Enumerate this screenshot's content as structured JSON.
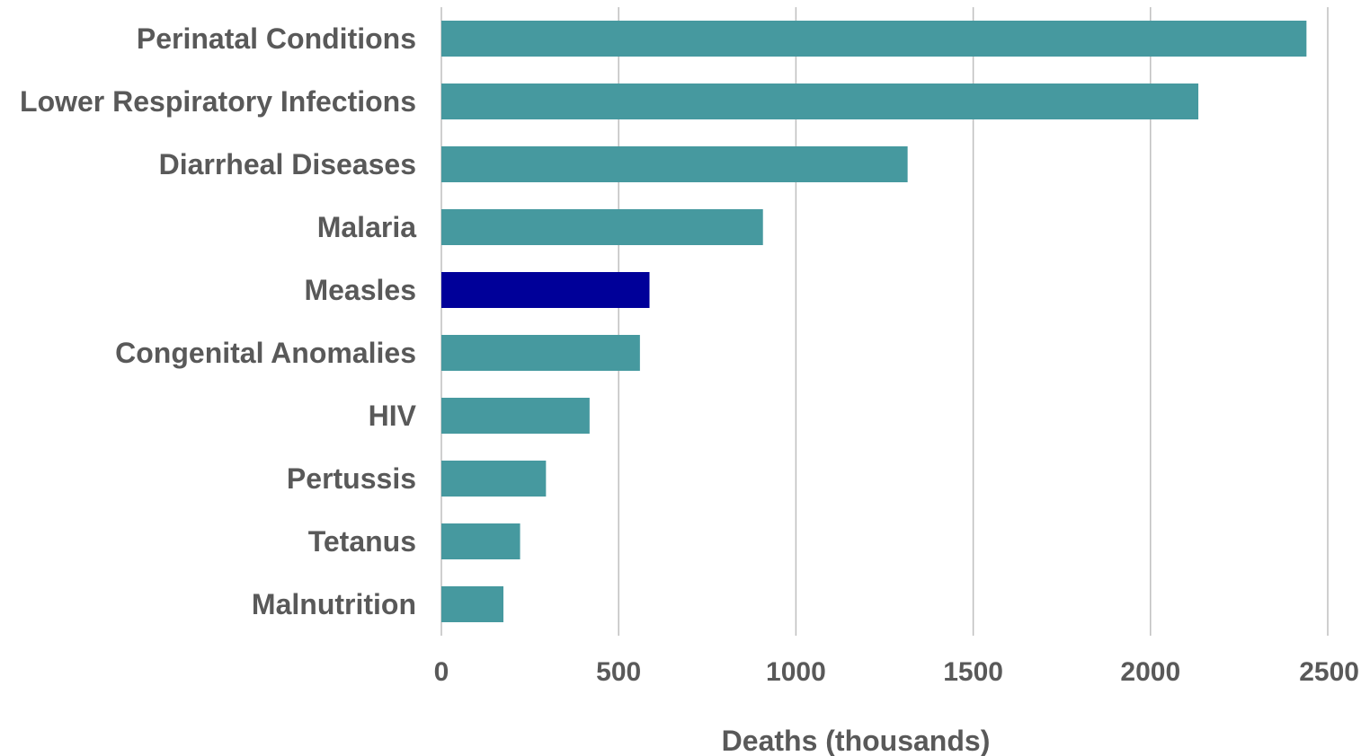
{
  "chart_data": {
    "type": "bar",
    "orientation": "horizontal",
    "categories": [
      "Perinatal Conditions",
      "Lower Respiratory Infections",
      "Diarrheal Diseases",
      "Malaria",
      "Measles",
      "Congenital Anomalies",
      "HIV",
      "Pertussis",
      "Tetanus",
      "Malnutrition"
    ],
    "values": [
      2440,
      2135,
      1315,
      907,
      587,
      560,
      418,
      295,
      222,
      175
    ],
    "highlight_index": 4,
    "colors": {
      "default": "#46999f",
      "highlight": "#000099"
    },
    "xlabel": "Deaths (thousands)",
    "ylabel": "",
    "xlim": [
      0,
      2500
    ],
    "xticks": [
      "0",
      "500",
      "1000",
      "1500",
      "2000",
      "2500"
    ],
    "grid": "vertical",
    "legend": "none"
  }
}
